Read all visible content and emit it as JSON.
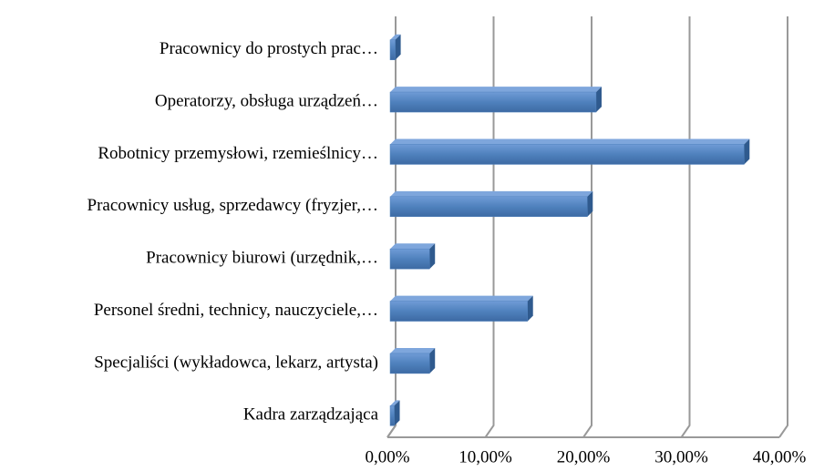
{
  "chart_data": {
    "type": "bar",
    "orientation": "horizontal",
    "categories": [
      "Pracownicy do prostych prac…",
      "Operatorzy, obsługa urządzeń…",
      "Robotnicy przemysłowi, rzemieślnicy…",
      "Pracownicy usług, sprzedawcy (fryzjer,…",
      "Pracownicy biurowi (urzędnik,…",
      "Personel średni, technicy, nauczyciele,…",
      "Specjaliści (wykładowca, lekarz, artysta)",
      "Kadra zarządzająca"
    ],
    "values": [
      0.8,
      21.3,
      36.4,
      20.4,
      4.3,
      14.3,
      4.3,
      0.7
    ],
    "color": "#4f81bd",
    "xlim": [
      0,
      40
    ],
    "xticks": [
      {
        "value": 0,
        "label": "0,00%"
      },
      {
        "value": 10,
        "label": "10,00%"
      },
      {
        "value": 20,
        "label": "20,00%"
      },
      {
        "value": 30,
        "label": "30,00%"
      },
      {
        "value": 40,
        "label": "40,00%"
      }
    ],
    "grid": true
  }
}
